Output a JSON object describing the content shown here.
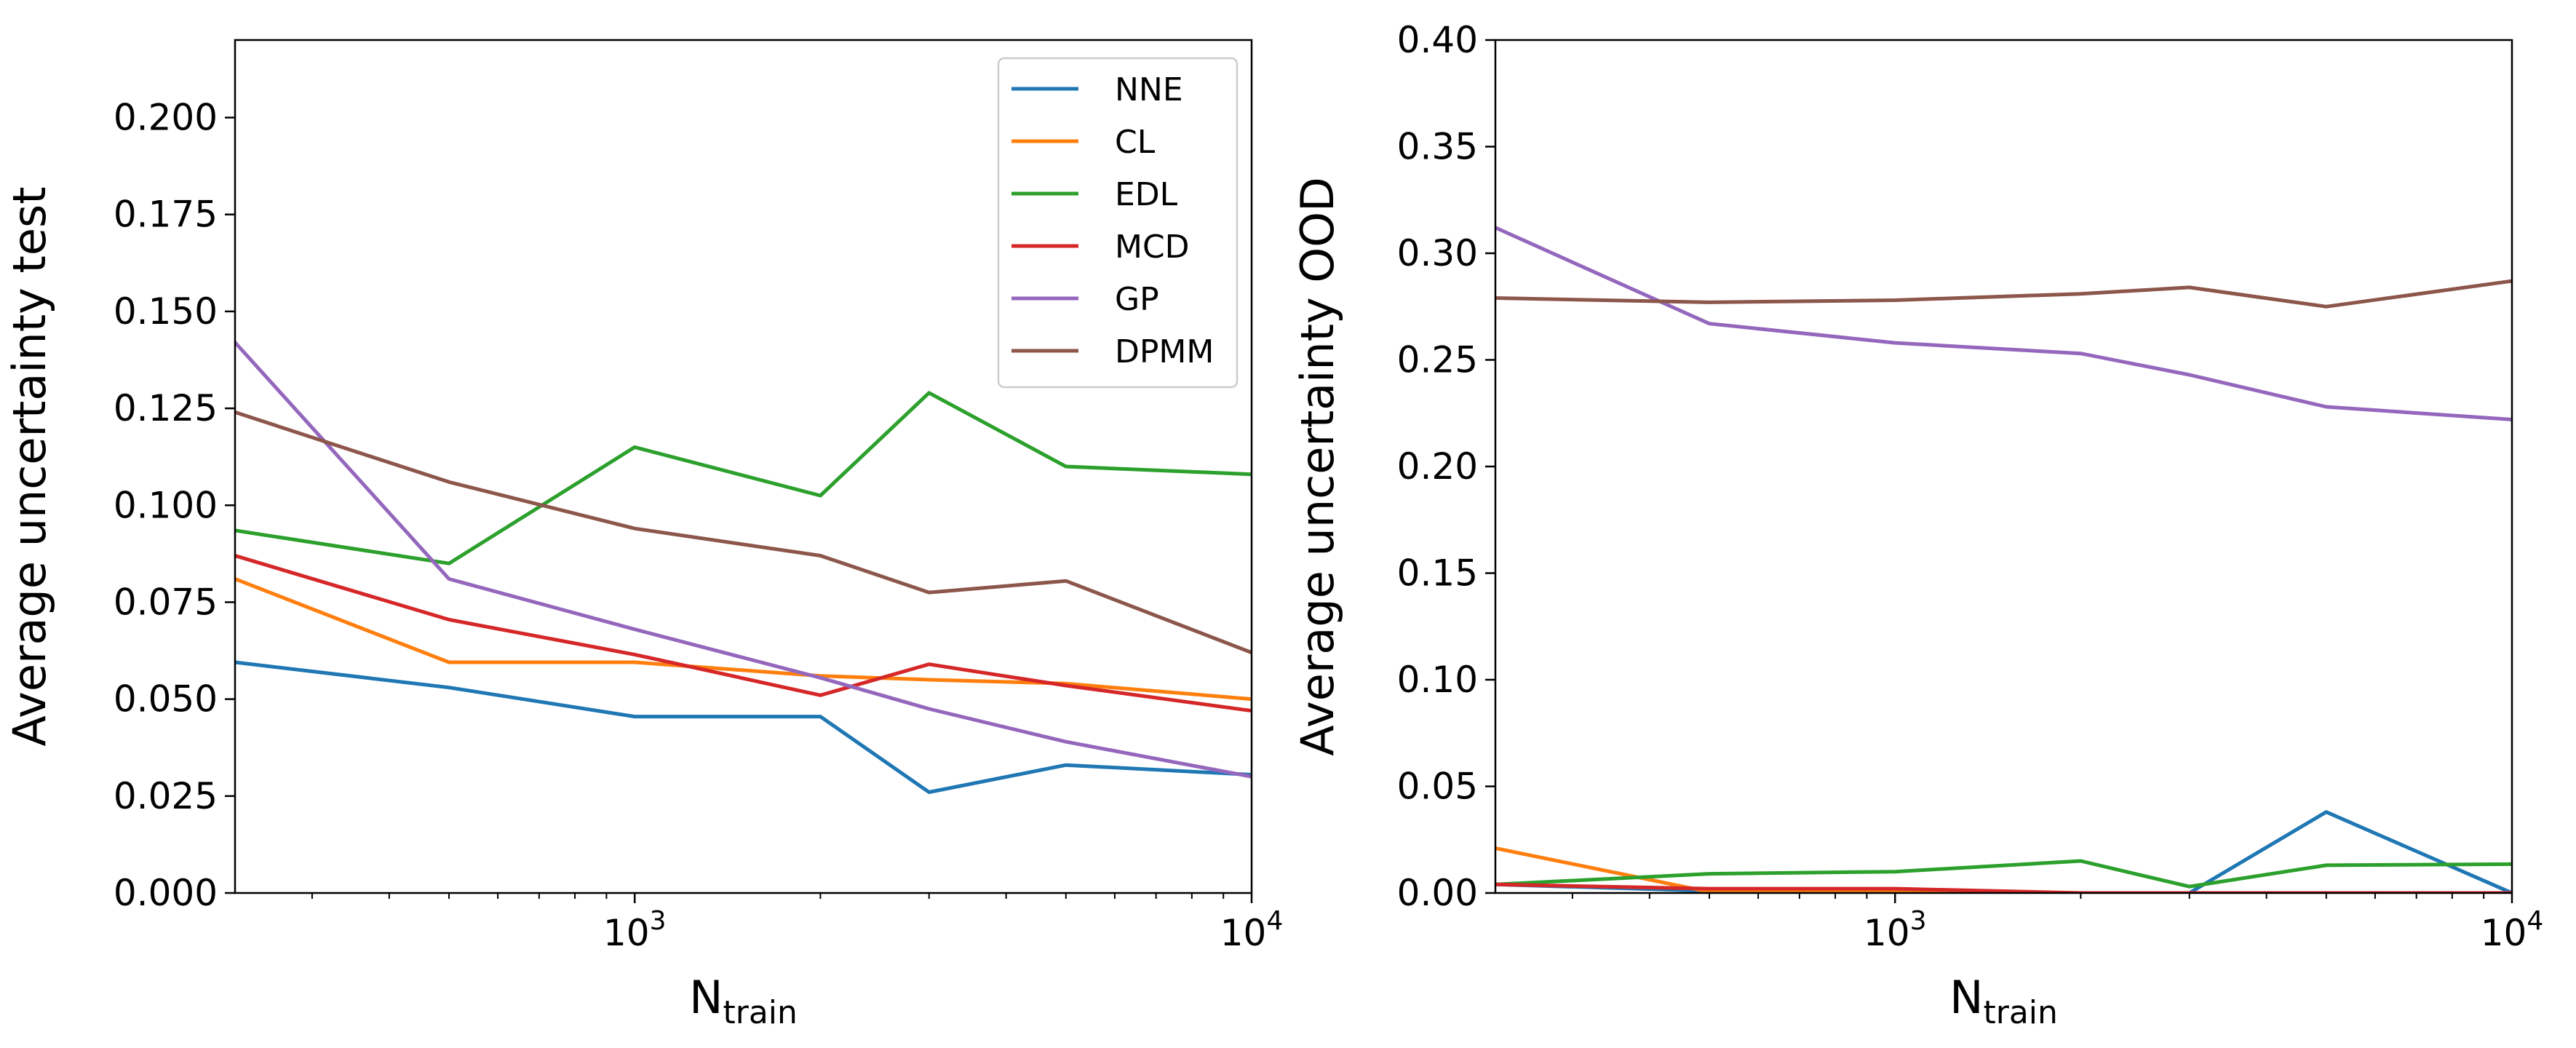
{
  "chart_data": [
    {
      "type": "line",
      "xscale": "log",
      "xlim": [
        225,
        10000
      ],
      "ylim": [
        0,
        0.22
      ],
      "xlabel": "N",
      "xlabel_sub": "train",
      "ylabel": "Average uncertainty test",
      "xticks": [
        {
          "value": 1000,
          "base": "10",
          "exp": "3"
        },
        {
          "value": 10000,
          "base": "10",
          "exp": "4"
        }
      ],
      "yticks": [
        "0.000",
        "0.025",
        "0.050",
        "0.075",
        "0.100",
        "0.125",
        "0.150",
        "0.175",
        "0.200"
      ],
      "legend": "top-right",
      "x": [
        225,
        500,
        1000,
        2000,
        3000,
        5000,
        10000
      ],
      "series": [
        {
          "name": "NNE",
          "color": "#1f77b4",
          "values": [
            0.0595,
            0.053,
            0.0455,
            0.0455,
            0.026,
            0.033,
            0.0305
          ]
        },
        {
          "name": "CL",
          "color": "#ff7f0e",
          "values": [
            0.081,
            0.0595,
            0.0595,
            0.056,
            0.055,
            0.054,
            0.05
          ]
        },
        {
          "name": "EDL",
          "color": "#2ca02c",
          "values": [
            0.0935,
            0.085,
            0.115,
            0.1025,
            0.129,
            0.11,
            0.108
          ]
        },
        {
          "name": "MCD",
          "color": "#d62728",
          "values": [
            0.087,
            0.0705,
            0.0615,
            0.051,
            0.059,
            0.0535,
            0.047
          ]
        },
        {
          "name": "GP",
          "color": "#9467bd",
          "values": [
            0.142,
            0.081,
            0.068,
            0.0555,
            0.0475,
            0.039,
            0.03
          ]
        },
        {
          "name": "DPMM",
          "color": "#8c564b",
          "values": [
            0.124,
            0.106,
            0.094,
            0.087,
            0.0775,
            0.0805,
            0.062
          ]
        }
      ]
    },
    {
      "type": "line",
      "xscale": "log",
      "xlim": [
        225,
        10000
      ],
      "ylim": [
        0,
        0.4
      ],
      "xlabel": "N",
      "xlabel_sub": "train",
      "ylabel": "Average uncertainty OOD",
      "xticks": [
        {
          "value": 1000,
          "base": "10",
          "exp": "3"
        },
        {
          "value": 10000,
          "base": "10",
          "exp": "4"
        }
      ],
      "yticks": [
        "0.00",
        "0.05",
        "0.10",
        "0.15",
        "0.20",
        "0.25",
        "0.30",
        "0.35",
        "0.40"
      ],
      "x": [
        225,
        500,
        1000,
        2000,
        3000,
        5000,
        10000
      ],
      "series": [
        {
          "color": "#1f77b4",
          "values": [
            0.004,
            0.001,
            0.001,
            0.0,
            0.0,
            0.038,
            0.0
          ]
        },
        {
          "color": "#ff7f0e",
          "values": [
            0.021,
            0.0005,
            0.0005,
            0.0,
            0.0,
            0.0,
            0.0
          ]
        },
        {
          "color": "#2ca02c",
          "values": [
            0.004,
            0.009,
            0.01,
            0.015,
            0.003,
            0.013,
            0.0135
          ]
        },
        {
          "color": "#d62728",
          "values": [
            0.004,
            0.002,
            0.002,
            0.0,
            0.0,
            0.0,
            0.0
          ]
        },
        {
          "color": "#9467bd",
          "values": [
            0.312,
            0.267,
            0.258,
            0.253,
            0.243,
            0.228,
            0.222
          ]
        },
        {
          "color": "#8c564b",
          "values": [
            0.279,
            0.277,
            0.278,
            0.281,
            0.284,
            0.275,
            0.287
          ]
        }
      ]
    }
  ]
}
